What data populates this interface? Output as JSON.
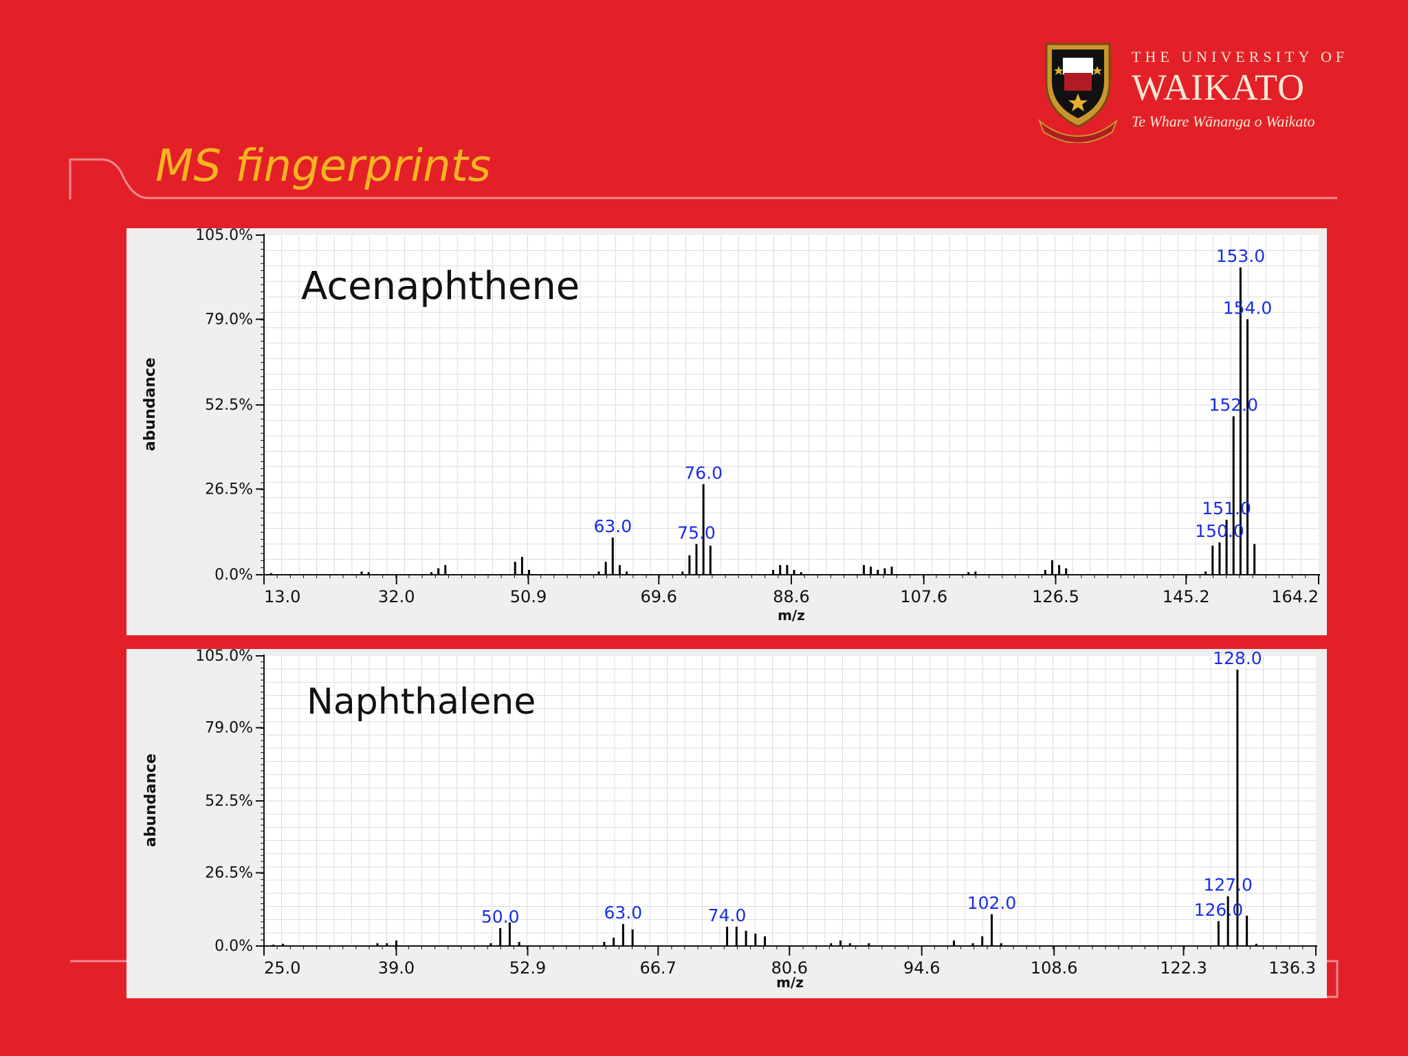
{
  "slide": {
    "title": "MS fingerprints",
    "logo_line1": "THE UNIVERSITY OF",
    "logo_line2": "WAIKATO",
    "logo_line3": "Te Whare Wānanga o Waikato"
  },
  "colors": {
    "background": "#e32028",
    "title": "#f7b521",
    "peak_label": "#1a2ee0",
    "panel": "#efeff0"
  },
  "chart_data": [
    {
      "type": "bar",
      "title": "Acenaphthene",
      "xlabel": "m/z",
      "ylabel": "abundance",
      "xlim": [
        13.0,
        164.2
      ],
      "ylim": [
        0,
        105
      ],
      "x_ticks": [
        "13.0",
        "32.0",
        "50.9",
        "69.6",
        "88.6",
        "107.6",
        "126.5",
        "145.2",
        "164.2"
      ],
      "y_ticks": [
        "105.0%",
        "79.0%",
        "52.5%",
        "26.5%",
        "0.0%"
      ],
      "grid": true,
      "peaks": [
        {
          "mz": 14,
          "ab": 0.5
        },
        {
          "mz": 27,
          "ab": 1
        },
        {
          "mz": 28,
          "ab": 0.8
        },
        {
          "mz": 37,
          "ab": 0.8
        },
        {
          "mz": 38,
          "ab": 2
        },
        {
          "mz": 39,
          "ab": 3
        },
        {
          "mz": 49,
          "ab": 4
        },
        {
          "mz": 50,
          "ab": 5.5
        },
        {
          "mz": 51,
          "ab": 1.5
        },
        {
          "mz": 61,
          "ab": 1
        },
        {
          "mz": 62,
          "ab": 4
        },
        {
          "mz": 63,
          "ab": 11.5
        },
        {
          "mz": 64,
          "ab": 3
        },
        {
          "mz": 65,
          "ab": 1
        },
        {
          "mz": 73,
          "ab": 1
        },
        {
          "mz": 74,
          "ab": 6
        },
        {
          "mz": 75,
          "ab": 9.5
        },
        {
          "mz": 76,
          "ab": 28
        },
        {
          "mz": 77,
          "ab": 9
        },
        {
          "mz": 86,
          "ab": 1.5
        },
        {
          "mz": 87,
          "ab": 3
        },
        {
          "mz": 88,
          "ab": 3
        },
        {
          "mz": 89,
          "ab": 1.5
        },
        {
          "mz": 90,
          "ab": 0.8
        },
        {
          "mz": 99,
          "ab": 3
        },
        {
          "mz": 100,
          "ab": 2.5
        },
        {
          "mz": 101,
          "ab": 1.5
        },
        {
          "mz": 102,
          "ab": 2
        },
        {
          "mz": 103,
          "ab": 2.5
        },
        {
          "mz": 114,
          "ab": 0.8
        },
        {
          "mz": 115,
          "ab": 1
        },
        {
          "mz": 125,
          "ab": 1.5
        },
        {
          "mz": 126,
          "ab": 4.5
        },
        {
          "mz": 127,
          "ab": 3
        },
        {
          "mz": 128,
          "ab": 2
        },
        {
          "mz": 148,
          "ab": 1
        },
        {
          "mz": 149,
          "ab": 9
        },
        {
          "mz": 150,
          "ab": 10
        },
        {
          "mz": 151,
          "ab": 17
        },
        {
          "mz": 152,
          "ab": 49
        },
        {
          "mz": 153,
          "ab": 95
        },
        {
          "mz": 154,
          "ab": 79
        },
        {
          "mz": 155,
          "ab": 9.5
        }
      ],
      "annotations": [
        {
          "mz": 63,
          "ab": 11.5,
          "text": "63.0"
        },
        {
          "mz": 75,
          "ab": 9.5,
          "text": "75.0"
        },
        {
          "mz": 76,
          "ab": 28,
          "text": "76.0"
        },
        {
          "mz": 150,
          "ab": 10,
          "text": "150.0"
        },
        {
          "mz": 151,
          "ab": 17,
          "text": "151.0"
        },
        {
          "mz": 152,
          "ab": 49,
          "text": "152.0"
        },
        {
          "mz": 153,
          "ab": 95,
          "text": "153.0"
        },
        {
          "mz": 154,
          "ab": 79,
          "text": "154.0"
        }
      ]
    },
    {
      "type": "bar",
      "title": "Naphthalene",
      "xlabel": "m/z",
      "ylabel": "abundance",
      "xlim": [
        25.0,
        136.3
      ],
      "ylim": [
        0,
        105
      ],
      "x_ticks": [
        "25.0",
        "39.0",
        "52.9",
        "66.7",
        "80.6",
        "94.6",
        "108.6",
        "122.3",
        "136.3"
      ],
      "y_ticks": [
        "105.0%",
        "79.0%",
        "52.5%",
        "26.5%",
        "0.0%"
      ],
      "grid": true,
      "peaks": [
        {
          "mz": 26,
          "ab": 0.5
        },
        {
          "mz": 27,
          "ab": 0.8
        },
        {
          "mz": 37,
          "ab": 1
        },
        {
          "mz": 38,
          "ab": 1
        },
        {
          "mz": 39,
          "ab": 2
        },
        {
          "mz": 49,
          "ab": 1
        },
        {
          "mz": 50,
          "ab": 6.5
        },
        {
          "mz": 51,
          "ab": 8.5
        },
        {
          "mz": 52,
          "ab": 1.5
        },
        {
          "mz": 61,
          "ab": 1.5
        },
        {
          "mz": 62,
          "ab": 3
        },
        {
          "mz": 63,
          "ab": 8
        },
        {
          "mz": 64,
          "ab": 6
        },
        {
          "mz": 74,
          "ab": 7
        },
        {
          "mz": 75,
          "ab": 7
        },
        {
          "mz": 76,
          "ab": 5.5
        },
        {
          "mz": 77,
          "ab": 4.5
        },
        {
          "mz": 78,
          "ab": 3.5
        },
        {
          "mz": 85,
          "ab": 1
        },
        {
          "mz": 86,
          "ab": 2
        },
        {
          "mz": 87,
          "ab": 1
        },
        {
          "mz": 89,
          "ab": 1
        },
        {
          "mz": 98,
          "ab": 2
        },
        {
          "mz": 100,
          "ab": 1
        },
        {
          "mz": 101,
          "ab": 3.5
        },
        {
          "mz": 102,
          "ab": 11.5
        },
        {
          "mz": 103,
          "ab": 1
        },
        {
          "mz": 126,
          "ab": 9
        },
        {
          "mz": 127,
          "ab": 18
        },
        {
          "mz": 128,
          "ab": 100
        },
        {
          "mz": 129,
          "ab": 11
        },
        {
          "mz": 130,
          "ab": 0.8
        }
      ],
      "annotations": [
        {
          "mz": 50,
          "ab": 6.5,
          "text": "50.0"
        },
        {
          "mz": 63,
          "ab": 8,
          "text": "63.0"
        },
        {
          "mz": 74,
          "ab": 7,
          "text": "74.0"
        },
        {
          "mz": 102,
          "ab": 11.5,
          "text": "102.0"
        },
        {
          "mz": 126,
          "ab": 9,
          "text": "126.0"
        },
        {
          "mz": 127,
          "ab": 18,
          "text": "127.0"
        },
        {
          "mz": 128,
          "ab": 100,
          "text": "128.0"
        }
      ]
    }
  ]
}
